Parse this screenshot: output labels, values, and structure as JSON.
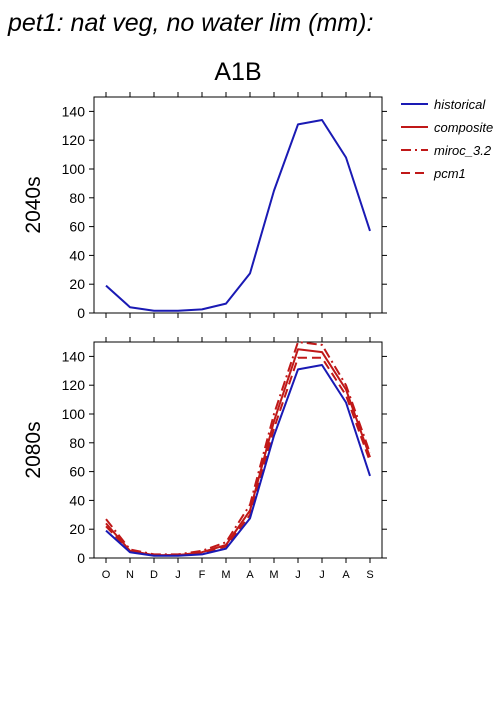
{
  "chart_data": {
    "type": "line",
    "title": "pet1: nat veg, no water lim (mm):",
    "subtitle": "A1B",
    "x_categories": [
      "O",
      "N",
      "D",
      "J",
      "F",
      "M",
      "A",
      "M",
      "J",
      "J",
      "A",
      "S"
    ],
    "ylim": [
      0,
      150
    ],
    "yticks": [
      0,
      20,
      40,
      60,
      80,
      100,
      120,
      140
    ],
    "grid": false,
    "legend_position": "right",
    "legend": [
      {
        "name": "historical",
        "color": "#1a1ab4",
        "dash": "solid"
      },
      {
        "name": "composite",
        "color": "#c01818",
        "dash": "solid"
      },
      {
        "name": "miroc_3.2",
        "color": "#c01818",
        "dash": "dashdot"
      },
      {
        "name": "pcm1",
        "color": "#c01818",
        "dash": "dashed"
      }
    ],
    "panels": [
      {
        "ylabel": "2040s",
        "series": [
          {
            "name": "historical",
            "color": "#1a1ab4",
            "dash": "solid",
            "values": [
              19,
              4,
              1.5,
              1.5,
              2.5,
              6.5,
              27.5,
              85,
              131,
              134,
              108,
              57
            ]
          }
        ]
      },
      {
        "ylabel": "2080s",
        "series": [
          {
            "name": "historical",
            "color": "#1a1ab4",
            "dash": "solid",
            "values": [
              19,
              4,
              1.5,
              1.5,
              2.5,
              6.5,
              27.5,
              85,
              131,
              134,
              108,
              57
            ]
          },
          {
            "name": "composite",
            "color": "#c01818",
            "dash": "solid",
            "values": [
              24,
              5,
              2,
              2,
              4,
              9,
              33,
              95,
              145,
              143,
              117,
              70
            ]
          },
          {
            "name": "miroc_3.2",
            "color": "#c01818",
            "dash": "dashdot",
            "values": [
              27,
              6,
              2.5,
              2.5,
              5,
              11,
              37,
              100,
              150,
              148,
              120,
              73
            ]
          },
          {
            "name": "pcm1",
            "color": "#c01818",
            "dash": "dashed",
            "values": [
              22,
              4.5,
              2,
              2,
              3.5,
              8,
              30,
              90,
              139,
              139,
              113,
              67
            ]
          }
        ]
      }
    ]
  }
}
